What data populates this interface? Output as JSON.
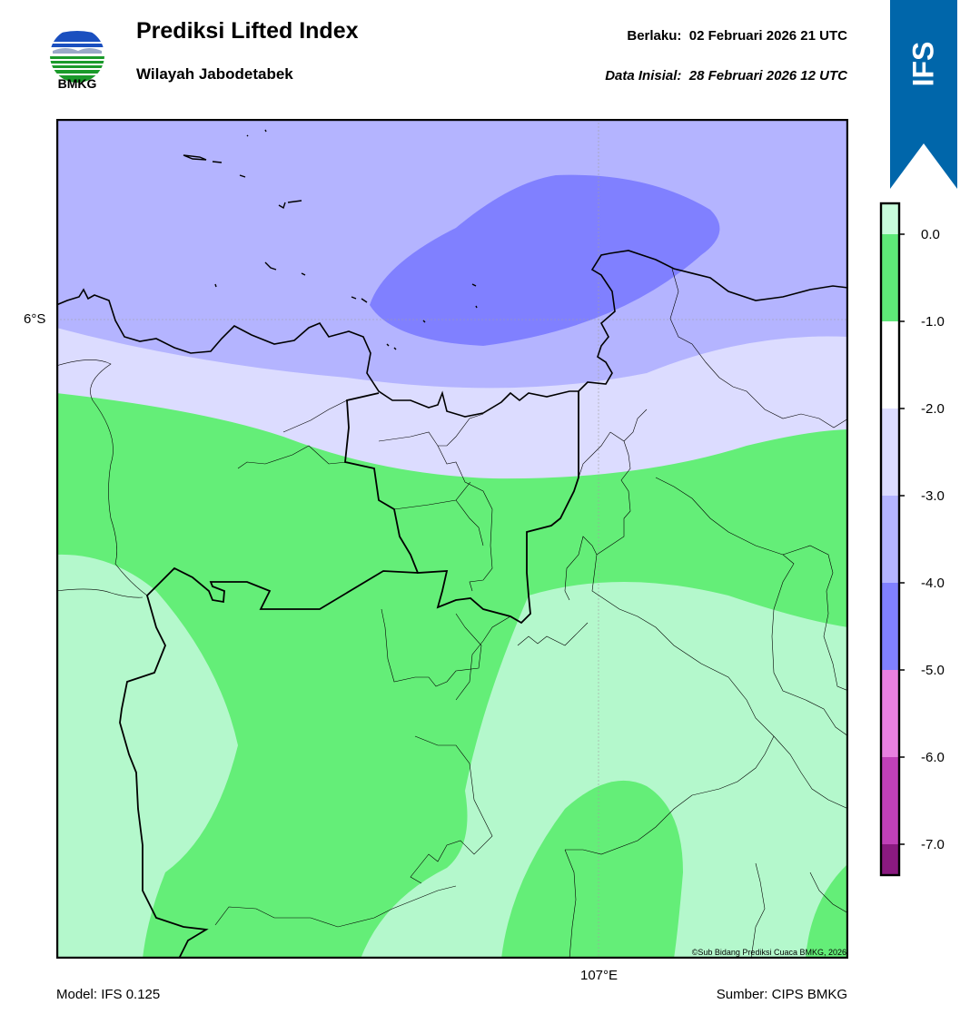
{
  "header": {
    "title": "Prediksi Lifted Index",
    "subtitle": "Wilayah Jabodetabek",
    "valid_label": "Berlaku:",
    "valid_time": "02 Februari 2026 21 UTC",
    "init_label": "Data Inisial:",
    "init_time": "28 Februari 2026 12 UTC"
  },
  "logo": {
    "text": "BMKG",
    "icon": "bmkg-logo"
  },
  "badge": {
    "text": "IFS",
    "color": "#0066aa"
  },
  "map": {
    "lat_label": "6°S",
    "lon_label": "107°E",
    "copyright": "©Sub Bidang Prediksi Cuaca BMKG, 2026"
  },
  "footer": {
    "model": "Model: IFS 0.125",
    "source": "Sumber: CIPS BMKG"
  },
  "colorbar": {
    "ticks": [
      "0.0",
      "-1.0",
      "-2.0",
      "-3.0",
      "-4.0",
      "-5.0",
      "-6.0",
      "-7.0"
    ],
    "bands": [
      {
        "color": "#c8fcdc"
      },
      {
        "color": "#5ee878"
      },
      {
        "color": "#ffffff"
      },
      {
        "color": "#dcdcff"
      },
      {
        "color": "#b4b4ff"
      },
      {
        "color": "#8080ff"
      },
      {
        "color": "#e880e0"
      },
      {
        "color": "#c040b8"
      },
      {
        "color": "#8a1a80"
      }
    ]
  }
}
